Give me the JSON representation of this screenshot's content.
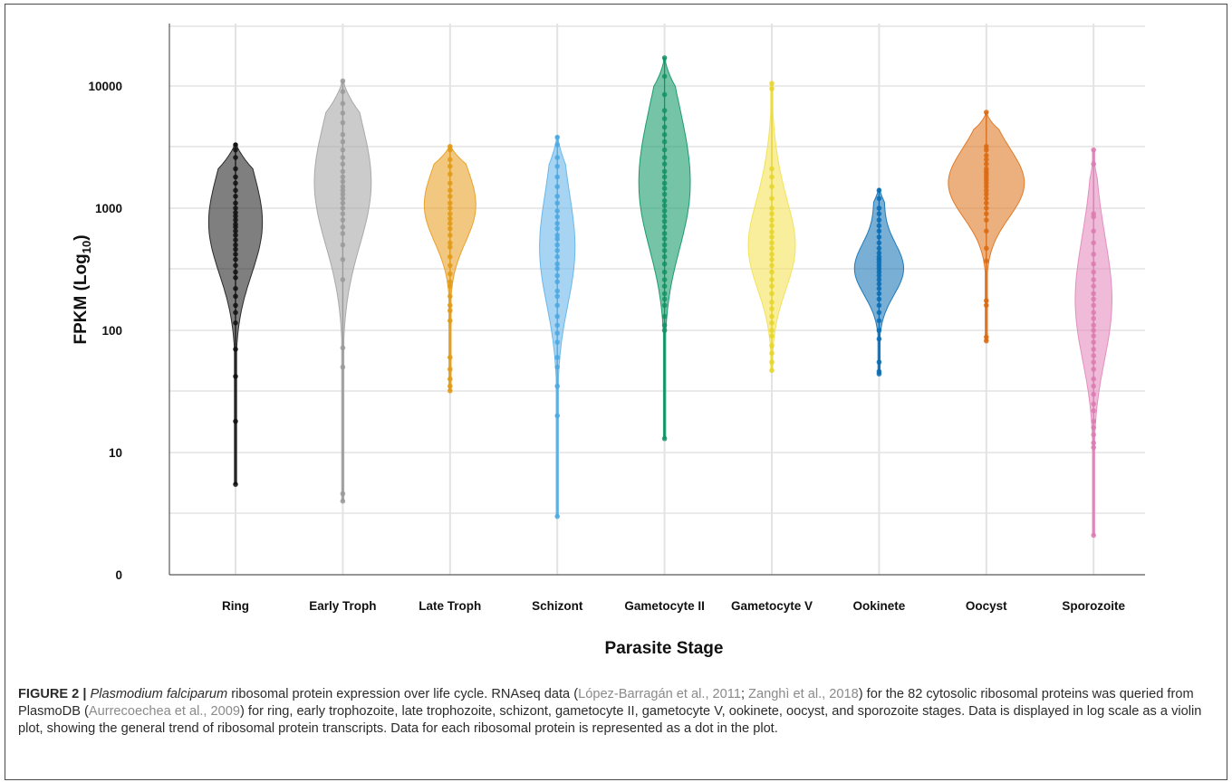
{
  "chart_data": {
    "type": "violin",
    "xlabel": "Parasite Stage",
    "ylabel_main": "FPKM (Log",
    "ylabel_sub": "10",
    "ylabel_end": ")",
    "yscale": "log",
    "ylim": [
      0.4,
      35000
    ],
    "yticks": [
      {
        "label": "10000",
        "value": 10000
      },
      {
        "label": "1000",
        "value": 1000
      },
      {
        "label": "100",
        "value": 100
      },
      {
        "label": "10",
        "value": 10
      },
      {
        "label": "0",
        "value": 1
      }
    ],
    "grid": true,
    "categories": [
      "Ring",
      "Early Troph",
      "Late Troph",
      "Schizont",
      "Gametocyte II",
      "Gametocyte V",
      "Ookinete",
      "Oocyst",
      "Sporozoite"
    ],
    "series": [
      {
        "color": "#2a2a2a",
        "dot": "#111111",
        "min": 5.5,
        "max": 3400,
        "modes": [
          [
            700,
            28
          ],
          [
            3200,
            6
          ]
        ],
        "points": [
          5.5,
          18,
          42,
          70,
          115,
          140,
          160,
          190,
          220,
          270,
          300,
          340,
          380,
          420,
          460,
          500,
          550,
          600,
          650,
          700,
          740,
          800,
          860,
          920,
          1000,
          1100,
          1250,
          1400,
          1600,
          1800,
          2100,
          2600,
          3000,
          3300
        ]
      },
      {
        "color": "#a9a9a9",
        "dot": "#9a9a9a",
        "min": 4,
        "max": 11000,
        "modes": [
          [
            1500,
            30
          ],
          [
            9500,
            5
          ]
        ],
        "points": [
          4,
          4.6,
          50,
          72,
          260,
          380,
          500,
          620,
          700,
          800,
          900,
          1000,
          1100,
          1200,
          1300,
          1400,
          1500,
          1650,
          1800,
          2000,
          2300,
          2600,
          3000,
          3500,
          4000,
          5000,
          6000,
          7200,
          9000,
          11000
        ]
      },
      {
        "color": "#e9a22b",
        "dot": "#e09a18",
        "min": 32,
        "max": 3250,
        "modes": [
          [
            1000,
            27
          ],
          [
            3100,
            6
          ]
        ],
        "points": [
          32,
          35,
          40,
          48,
          60,
          120,
          145,
          160,
          190,
          230,
          250,
          290,
          340,
          400,
          480,
          520,
          600,
          680,
          750,
          820,
          900,
          1000,
          1100,
          1250,
          1400,
          1600,
          1900,
          2200,
          2500,
          3000,
          3200
        ]
      },
      {
        "color": "#6bb8ea",
        "dot": "#4aa8e3",
        "min": 3,
        "max": 3900,
        "modes": [
          [
            450,
            19
          ],
          [
            3500,
            4
          ]
        ],
        "points": [
          3,
          20,
          35,
          50,
          60,
          80,
          95,
          110,
          130,
          160,
          190,
          210,
          250,
          280,
          320,
          350,
          400,
          450,
          500,
          560,
          600,
          680,
          750,
          850,
          950,
          1100,
          1250,
          1500,
          1800,
          2200,
          2600,
          3300,
          3800
        ]
      },
      {
        "color": "#1a9c6e",
        "dot": "#0f9465",
        "min": 13,
        "max": 17000,
        "modes": [
          [
            1100,
            22
          ],
          [
            4500,
            13
          ]
        ],
        "points": [
          13,
          100,
          110,
          130,
          160,
          180,
          200,
          230,
          260,
          300,
          350,
          400,
          450,
          500,
          560,
          620,
          700,
          780,
          860,
          950,
          1050,
          1150,
          1300,
          1450,
          1600,
          1800,
          2000,
          2300,
          2600,
          3000,
          3500,
          4000,
          4600,
          5400,
          6300,
          8500,
          12000,
          17000
        ]
      },
      {
        "color": "#f3e35a",
        "dot": "#e8d52a",
        "min": 47,
        "max": 10500,
        "modes": [
          [
            450,
            24
          ],
          [
            1500,
            6
          ]
        ],
        "points": [
          47,
          55,
          65,
          75,
          90,
          100,
          115,
          130,
          150,
          170,
          200,
          230,
          260,
          300,
          340,
          380,
          420,
          470,
          520,
          580,
          640,
          720,
          800,
          900,
          1000,
          1200,
          1500,
          1800,
          2100,
          9500,
          10500
        ]
      },
      {
        "color": "#1f7ab8",
        "dot": "#0c6bb0",
        "min": 44,
        "max": 1450,
        "modes": [
          [
            320,
            27
          ],
          [
            1300,
            5
          ]
        ],
        "points": [
          44,
          46,
          55,
          85,
          100,
          120,
          140,
          160,
          180,
          200,
          220,
          240,
          260,
          280,
          300,
          320,
          340,
          360,
          380,
          400,
          430,
          470,
          520,
          580,
          650,
          720,
          800,
          900,
          1000,
          1200,
          1400
        ]
      },
      {
        "color": "#e07b2a",
        "dot": "#d96a12",
        "min": 82,
        "max": 6100,
        "modes": [
          [
            1500,
            38
          ],
          [
            3000,
            7
          ]
        ],
        "points": [
          82,
          88,
          160,
          175,
          370,
          470,
          650,
          800,
          900,
          1000,
          1100,
          1200,
          1300,
          1400,
          1500,
          1600,
          1700,
          1800,
          1900,
          2000,
          2100,
          2300,
          2500,
          2700,
          3000,
          3200,
          6100
        ]
      },
      {
        "color": "#e48ec0",
        "dot": "#dd7ab2",
        "min": 2.1,
        "max": 3000,
        "modes": [
          [
            150,
            18
          ],
          [
            600,
            5
          ]
        ],
        "points": [
          2.1,
          11,
          12,
          14,
          16,
          18,
          22,
          25,
          30,
          35,
          40,
          48,
          55,
          62,
          70,
          80,
          90,
          100,
          110,
          125,
          140,
          160,
          180,
          200,
          230,
          260,
          300,
          350,
          420,
          520,
          650,
          850,
          900,
          2300,
          3000
        ]
      }
    ]
  },
  "caption": {
    "label": "FIGURE 2 |",
    "species": "Plasmodium falciparum",
    "t1": " ribosomal protein expression over life cycle. RNAseq data (",
    "cite1": "López-Barragán et al., 2011",
    "t2": "; ",
    "cite2": "Zanghì et al., 2018",
    "t3": ") for the 82 cytosolic ribosomal proteins was queried from PlasmoDB (",
    "cite3": "Aurrecoechea et al., 2009",
    "t4": ") for ring, early trophozoite, late trophozoite, schizont, gametocyte II, gametocyte V, ookinete, oocyst, and sporozoite stages. Data is displayed in log scale as a violin plot, showing the general trend of ribosomal protein transcripts. Data for each ribosomal protein is represented as a dot in the plot."
  }
}
